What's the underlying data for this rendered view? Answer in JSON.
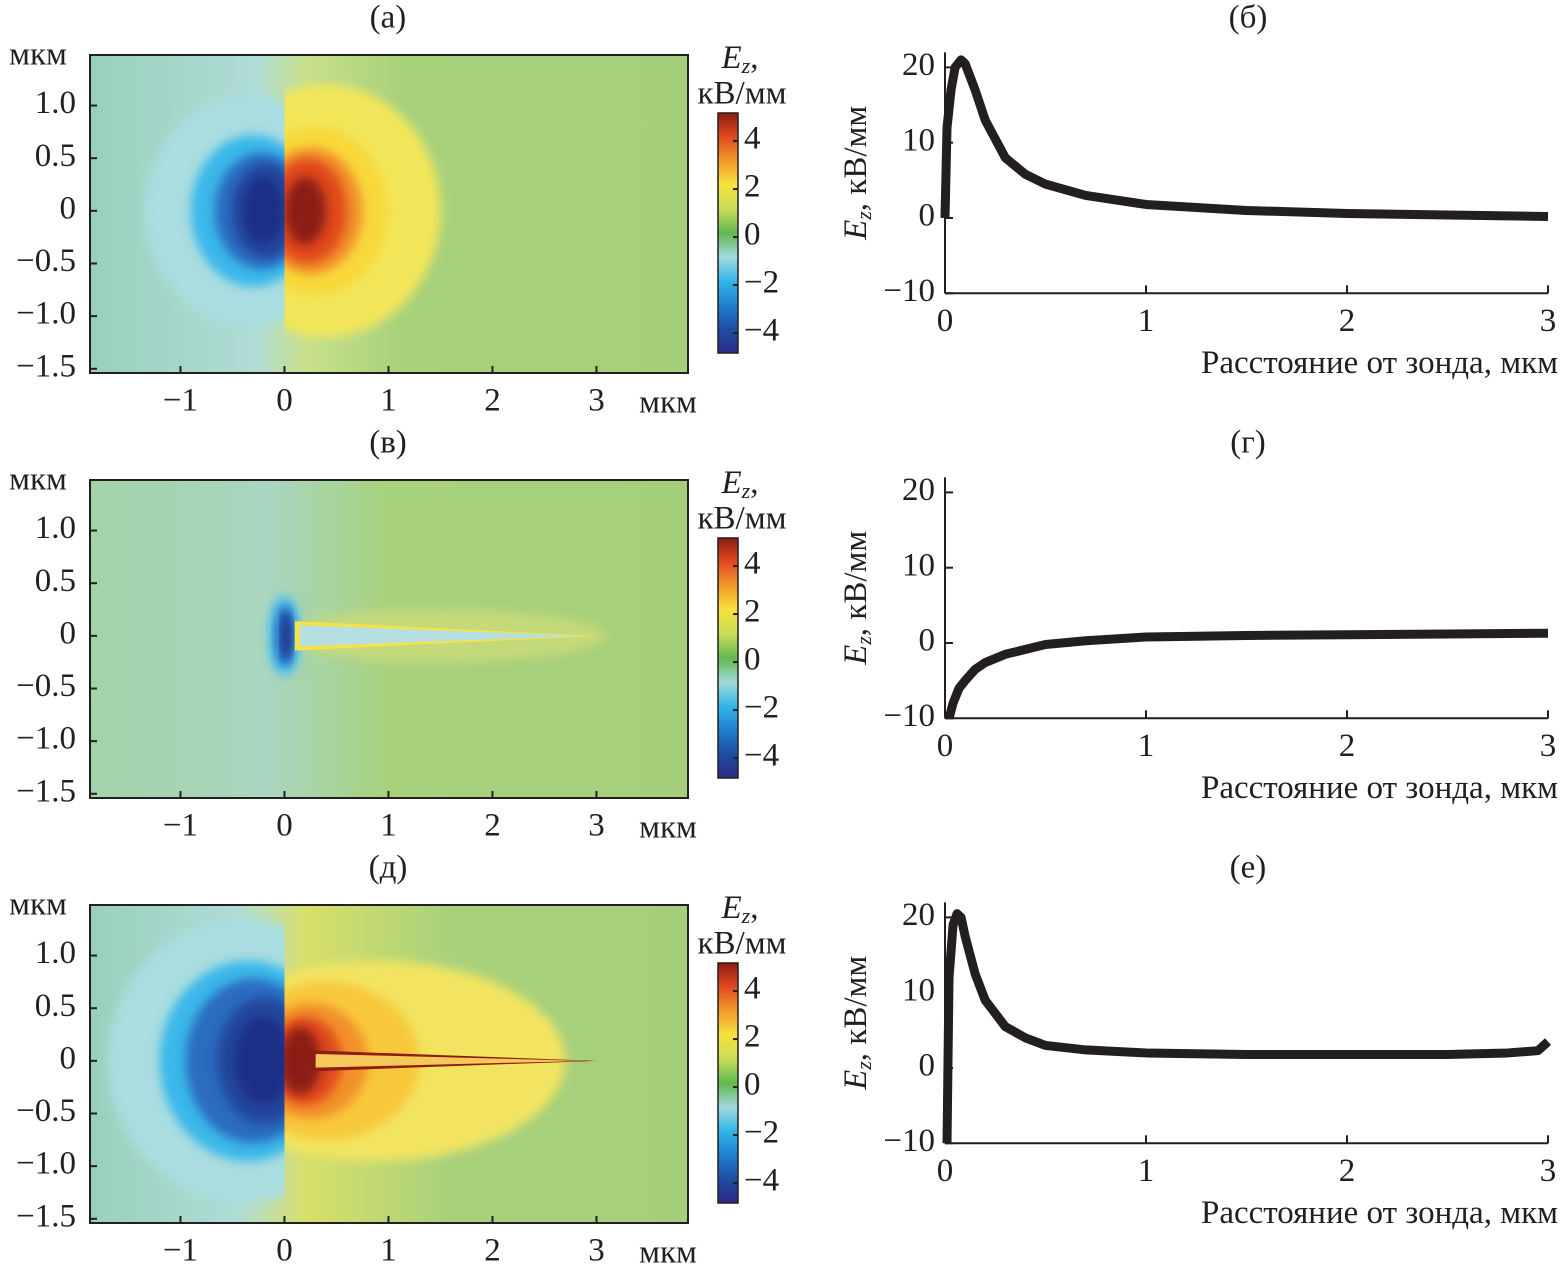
{
  "chart_data": [
    {
      "type": "heatmap",
      "title": "(а)",
      "xlim": [
        -1.87,
        3.88
      ],
      "ylim": [
        -1.54,
        1.48
      ],
      "xticks": [
        {
          "value": -1,
          "label": "−1"
        },
        0,
        1,
        2,
        3
      ],
      "yticks": [
        {
          "value": 1,
          "label": "1.0"
        },
        0.5,
        0,
        {
          "value": -0.5,
          "label": "−0.5"
        },
        {
          "value": -1,
          "label": "−1.0"
        },
        {
          "value": -1.5,
          "label": "−1.5"
        }
      ],
      "xunit": "мкм",
      "yunit": "мкм",
      "colorbar": {
        "symbol": "E",
        "subscript": "z",
        "punct": ",",
        "unit": "кВ/мм",
        "lim": [
          -4.83,
          5.17
        ],
        "ticks": [
          4,
          2,
          0,
          {
            "value": -2,
            "label": "−2"
          },
          {
            "value": -4,
            "label": "−4"
          }
        ],
        "colormap": [
          "#2d2a87",
          "#1d4ea3",
          "#2080cc",
          "#33b5e8",
          "#a4d9db",
          "#62b84f",
          "#c7dc5a",
          "#f6e33c",
          "#f29b2c",
          "#e24a21",
          "#8e1b12"
        ]
      }
    },
    {
      "type": "line",
      "title": "(б)",
      "color": "#231f20",
      "xlim": [
        0,
        3
      ],
      "ylim": [
        -10,
        22
      ],
      "xticks": [
        0,
        1,
        2,
        3
      ],
      "yticks": [
        {
          "value": -10,
          "label": "−10"
        },
        0,
        10,
        20
      ],
      "xlabel": "Расстояние от зонда, мкм",
      "ylabel_symbol": "E",
      "ylabel_subscript": "z",
      "ylabel_rest": ", кВ/мм",
      "x": [
        0,
        0.01,
        0.03,
        0.05,
        0.08,
        0.1,
        0.15,
        0.2,
        0.3,
        0.4,
        0.5,
        0.7,
        1,
        1.5,
        2,
        2.5,
        3
      ],
      "values": [
        0,
        12,
        17,
        20,
        21,
        20.5,
        17,
        13,
        8,
        5.8,
        4.5,
        3,
        1.8,
        1,
        0.6,
        0.4,
        0.2
      ]
    },
    {
      "type": "heatmap",
      "title": "(в)",
      "xlim": [
        -1.87,
        3.88
      ],
      "ylim": [
        -1.54,
        1.48
      ],
      "xticks": [
        {
          "value": -1,
          "label": "−1"
        },
        0,
        1,
        2,
        3
      ],
      "yticks": [
        {
          "value": 1,
          "label": "1.0"
        },
        0.5,
        0,
        {
          "value": -0.5,
          "label": "−0.5"
        },
        {
          "value": -1,
          "label": "−1.0"
        },
        {
          "value": -1.5,
          "label": "−1.5"
        }
      ],
      "xunit": "мкм",
      "yunit": "мкм",
      "colorbar": {
        "symbol": "E",
        "subscript": "z",
        "punct": ",",
        "unit": "кВ/мм",
        "lim": [
          -4.83,
          5.17
        ],
        "ticks": [
          4,
          2,
          0,
          {
            "value": -2,
            "label": "−2"
          },
          {
            "value": -4,
            "label": "−4"
          }
        ],
        "colormap": [
          "#2d2a87",
          "#1d4ea3",
          "#2080cc",
          "#33b5e8",
          "#a4d9db",
          "#62b84f",
          "#c7dc5a",
          "#f6e33c",
          "#f29b2c",
          "#e24a21",
          "#8e1b12"
        ]
      }
    },
    {
      "type": "line",
      "title": "(г)",
      "color": "#231f20",
      "xlim": [
        0,
        3
      ],
      "ylim": [
        -10,
        22
      ],
      "xticks": [
        0,
        1,
        2,
        3
      ],
      "yticks": [
        {
          "value": -10,
          "label": "−10"
        },
        0,
        10,
        20
      ],
      "xlabel": "Расстояние от зонда, мкм",
      "ylabel_symbol": "E",
      "ylabel_subscript": "z",
      "ylabel_rest": ", кВ/мм",
      "x": [
        0.02,
        0.04,
        0.07,
        0.1,
        0.15,
        0.2,
        0.3,
        0.5,
        0.7,
        1,
        1.5,
        2,
        2.5,
        3
      ],
      "values": [
        -10,
        -8,
        -6,
        -5,
        -3.5,
        -2.6,
        -1.5,
        -0.2,
        0.3,
        0.8,
        1,
        1.1,
        1.2,
        1.3
      ]
    },
    {
      "type": "heatmap",
      "title": "(д)",
      "xlim": [
        -1.87,
        3.88
      ],
      "ylim": [
        -1.54,
        1.48
      ],
      "xticks": [
        {
          "value": -1,
          "label": "−1"
        },
        0,
        1,
        2,
        3
      ],
      "yticks": [
        {
          "value": 1,
          "label": "1.0"
        },
        0.5,
        0,
        {
          "value": -0.5,
          "label": "−0.5"
        },
        {
          "value": -1,
          "label": "−1.0"
        },
        {
          "value": -1.5,
          "label": "−1.5"
        }
      ],
      "xunit": "мкм",
      "yunit": "мкм",
      "colorbar": {
        "symbol": "E",
        "subscript": "z",
        "punct": ",",
        "unit": "кВ/мм",
        "lim": [
          -4.83,
          5.17
        ],
        "ticks": [
          4,
          2,
          0,
          {
            "value": -2,
            "label": "−2"
          },
          {
            "value": -4,
            "label": "−4"
          }
        ],
        "colormap": [
          "#2d2a87",
          "#1d4ea3",
          "#2080cc",
          "#33b5e8",
          "#a4d9db",
          "#62b84f",
          "#c7dc5a",
          "#f6e33c",
          "#f29b2c",
          "#e24a21",
          "#8e1b12"
        ]
      }
    },
    {
      "type": "line",
      "title": "(е)",
      "color": "#231f20",
      "xlim": [
        0,
        3
      ],
      "ylim": [
        -10,
        22
      ],
      "xticks": [
        0,
        1,
        2,
        3
      ],
      "yticks": [
        {
          "value": -10,
          "label": "−10"
        },
        0,
        10,
        20
      ],
      "xlabel": "Расстояние от зонда, мкм",
      "ylabel_symbol": "E",
      "ylabel_subscript": "z",
      "ylabel_rest": ", кВ/мм",
      "x": [
        0.01,
        0.02,
        0.04,
        0.06,
        0.08,
        0.1,
        0.15,
        0.2,
        0.3,
        0.4,
        0.5,
        0.7,
        1,
        1.5,
        2,
        2.5,
        2.8,
        2.95,
        3
      ],
      "values": [
        -10,
        12,
        19,
        20.5,
        20,
        17.5,
        12.5,
        9,
        5.5,
        4,
        3,
        2.4,
        2,
        1.8,
        1.8,
        1.8,
        2,
        2.3,
        3.5
      ]
    }
  ]
}
